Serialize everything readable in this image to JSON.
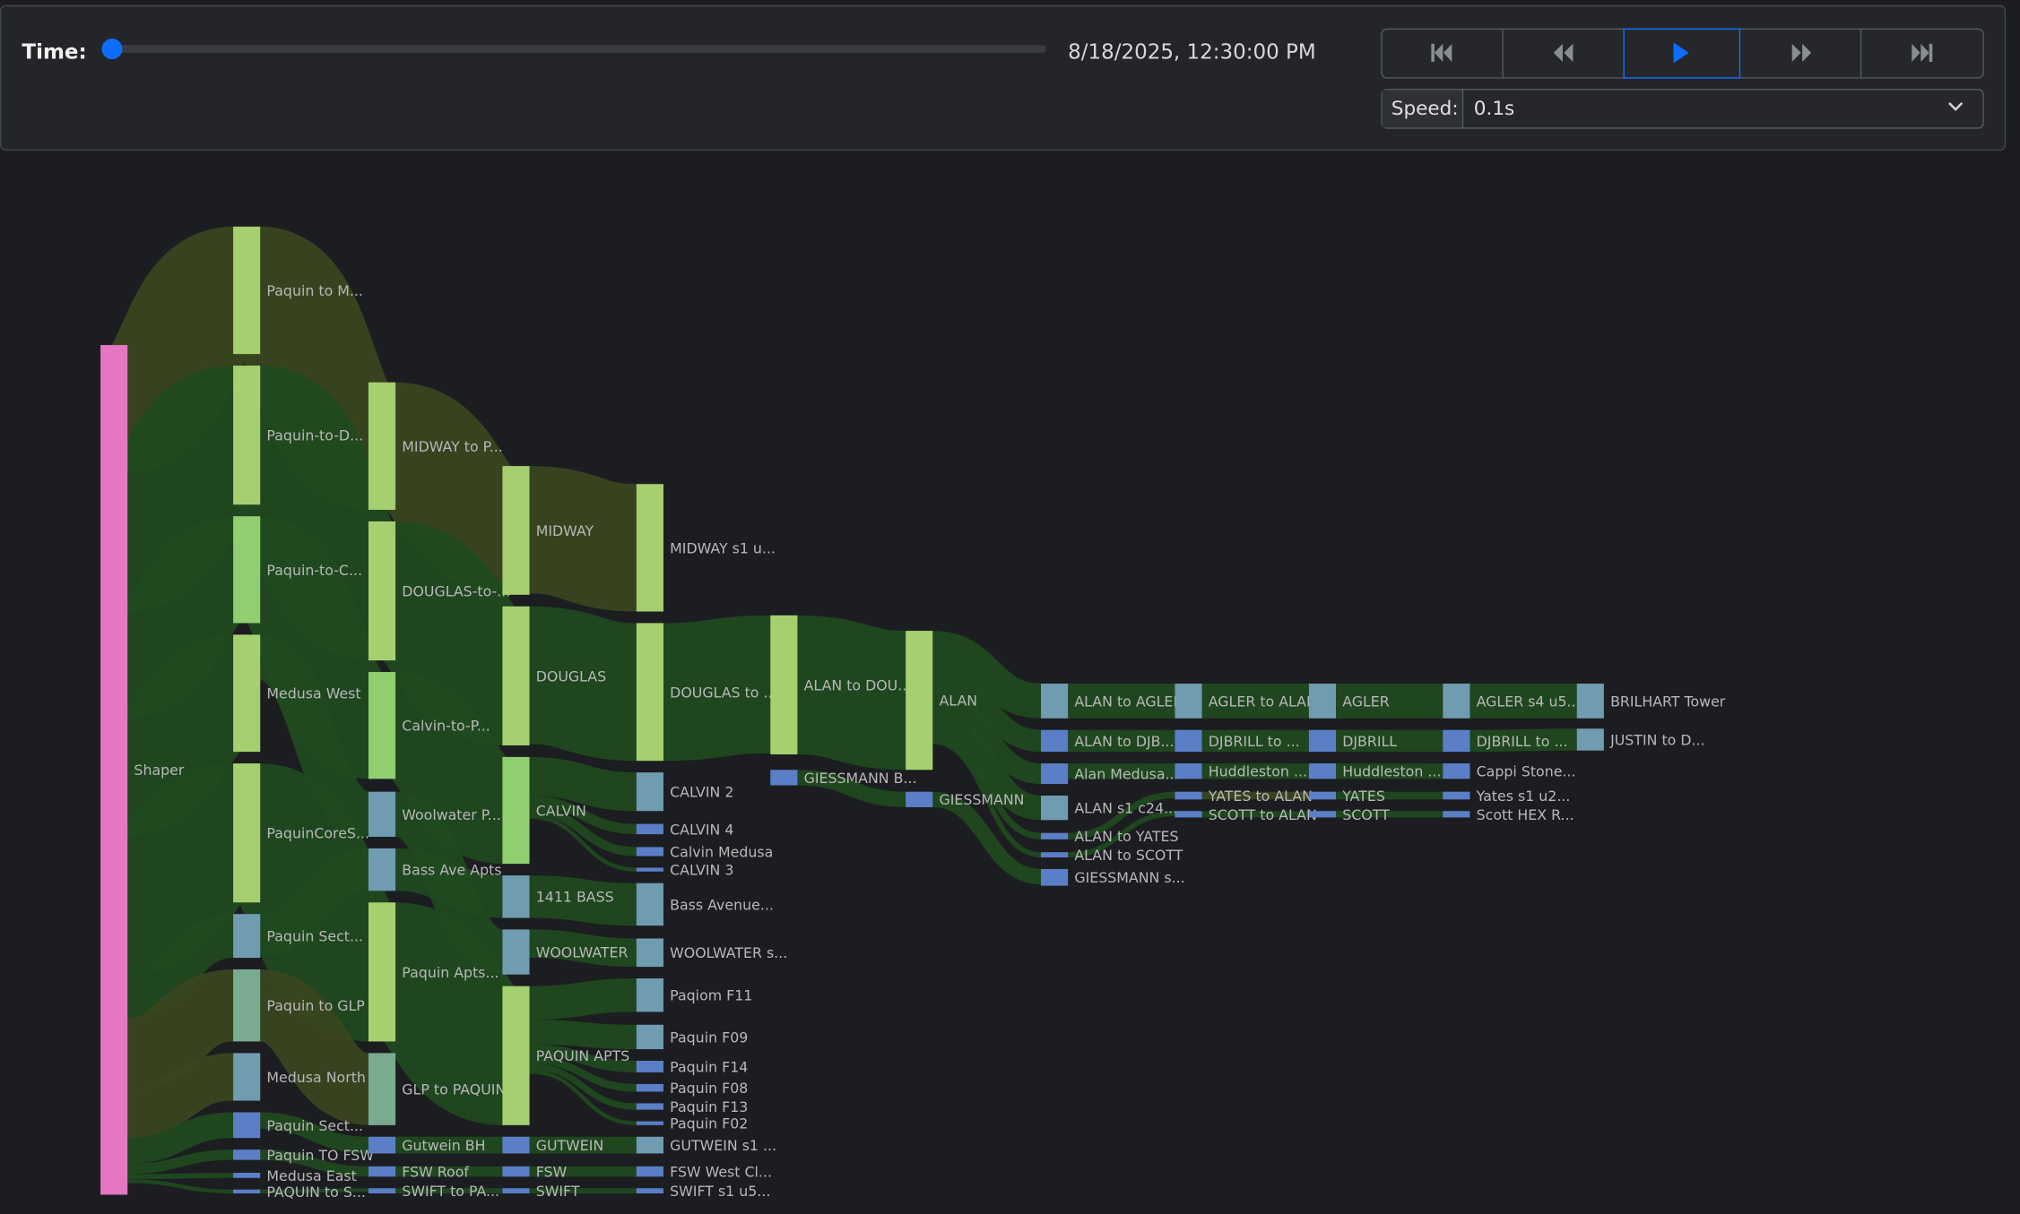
{
  "controls": {
    "time_label": "Time:",
    "time_value": "8/18/2025, 12:30:00 PM",
    "speed_label": "Speed:",
    "speed_value": "0.1s"
  },
  "sankey": {
    "nodes": [
      "Shaper",
      "Paquin to M...",
      "Paquin-to-D...",
      "Paquin-to-C...",
      "Medusa West",
      "PaquinCoreS...",
      "Paquin Sect...",
      "Paquin to GLP",
      "Medusa North",
      "Paquin Sect...",
      "Paquin TO FSW",
      "Medusa East",
      "PAQUIN to S...",
      "MIDWAY to P...",
      "DOUGLAS-to-...",
      "Calvin-to-P...",
      "Woolwater P...",
      "Bass Ave Apts",
      "Paquin Apts...",
      "GLP to PAQUIN",
      "Gutwein BH",
      "FSW Roof",
      "SWIFT to PA...",
      "MIDWAY",
      "DOUGLAS",
      "CALVIN",
      "1411 BASS",
      "WOOLWATER",
      "PAQUIN APTS",
      "GUTWEIN",
      "FSW",
      "SWIFT",
      "MIDWAY s1 u...",
      "DOUGLAS to ...",
      "CALVIN 2",
      "CALVIN 4",
      "Calvin Medusa",
      "CALVIN 3",
      "Bass Avenue...",
      "WOOLWATER s...",
      "Paqiom F11",
      "Paquin F09",
      "Paquin F14",
      "Paquin F08",
      "Paquin F13",
      "Paquin F02",
      "GUTWEIN s1 ...",
      "FSW West Cl...",
      "SWIFT s1 u5...",
      "ALAN to DOU...",
      "GIESSMANN B...",
      "ALAN",
      "GIESSMANN",
      "ALAN to AGLER",
      "ALAN to DJB...",
      "Alan Medusa...",
      "ALAN s1 c24...",
      "ALAN to YATES",
      "ALAN to SCOTT",
      "GIESSMANN s...",
      "AGLER to ALAN",
      "DJBRILL to ...",
      "Huddleston ...",
      "YATES to ALAN",
      "SCOTT to ALAN",
      "AGLER",
      "DJBRILL",
      "Huddleston ...",
      "YATES",
      "SCOTT",
      "AGLER s4 u5...",
      "DJBRILL to ...",
      "Cappi Stone...",
      "Yates s1 u2...",
      "Scott HEX R...",
      "BRILHART Tower",
      "JUSTIN to D..."
    ]
  }
}
